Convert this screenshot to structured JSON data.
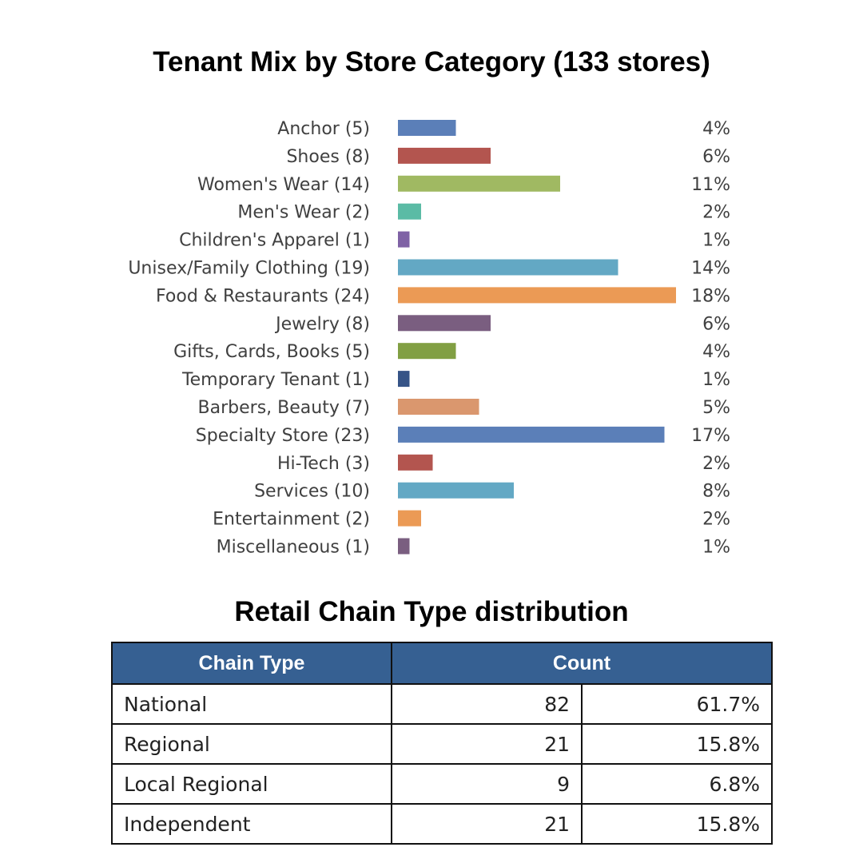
{
  "chart_data": {
    "type": "bar",
    "orientation": "horizontal",
    "title": "Tenant Mix by Store Category  (133 stores)",
    "total_stores": 133,
    "categories": [
      "Anchor (5)",
      "Shoes (8)",
      "Women's Wear (14)",
      "Men's Wear (2)",
      "Children's Apparel (1)",
      "Unisex/Family Clothing (19)",
      "Food & Restaurants (24)",
      "Jewelry (8)",
      "Gifts, Cards, Books (5)",
      "Temporary Tenant (1)",
      "Barbers, Beauty (7)",
      "Specialty Store (23)",
      "Hi-Tech (3)",
      "Services (10)",
      "Entertainment (2)",
      "Miscellaneous (1)"
    ],
    "values": [
      5,
      8,
      14,
      2,
      1,
      19,
      24,
      8,
      5,
      1,
      7,
      23,
      3,
      10,
      2,
      1
    ],
    "percent_labels": [
      "4%",
      "6%",
      "11%",
      "2%",
      "1%",
      "14%",
      "18%",
      "6%",
      "4%",
      "1%",
      "5%",
      "17%",
      "2%",
      "8%",
      "2%",
      "1%"
    ],
    "colors": [
      "#5b7fb8",
      "#b3554f",
      "#a0b962",
      "#5bbba5",
      "#7f62a5",
      "#63a8c4",
      "#eb9a55",
      "#7a5e80",
      "#819f43",
      "#365487",
      "#da976e",
      "#5b7fb8",
      "#b3554f",
      "#63a8c4",
      "#eb9a55",
      "#7a5e80"
    ],
    "xlabel": "",
    "ylabel": "",
    "xlim": [
      0,
      24
    ],
    "grid": false
  },
  "table": {
    "title": "Retail Chain Type distribution",
    "headers": [
      "Chain Type",
      "Count"
    ],
    "rows": [
      {
        "type": "National",
        "count": "82",
        "pct": "61.7%"
      },
      {
        "type": "Regional",
        "count": "21",
        "pct": "15.8%"
      },
      {
        "type": "Local Regional",
        "count": "9",
        "pct": "6.8%"
      },
      {
        "type": "Independent",
        "count": "21",
        "pct": "15.8%"
      }
    ]
  }
}
